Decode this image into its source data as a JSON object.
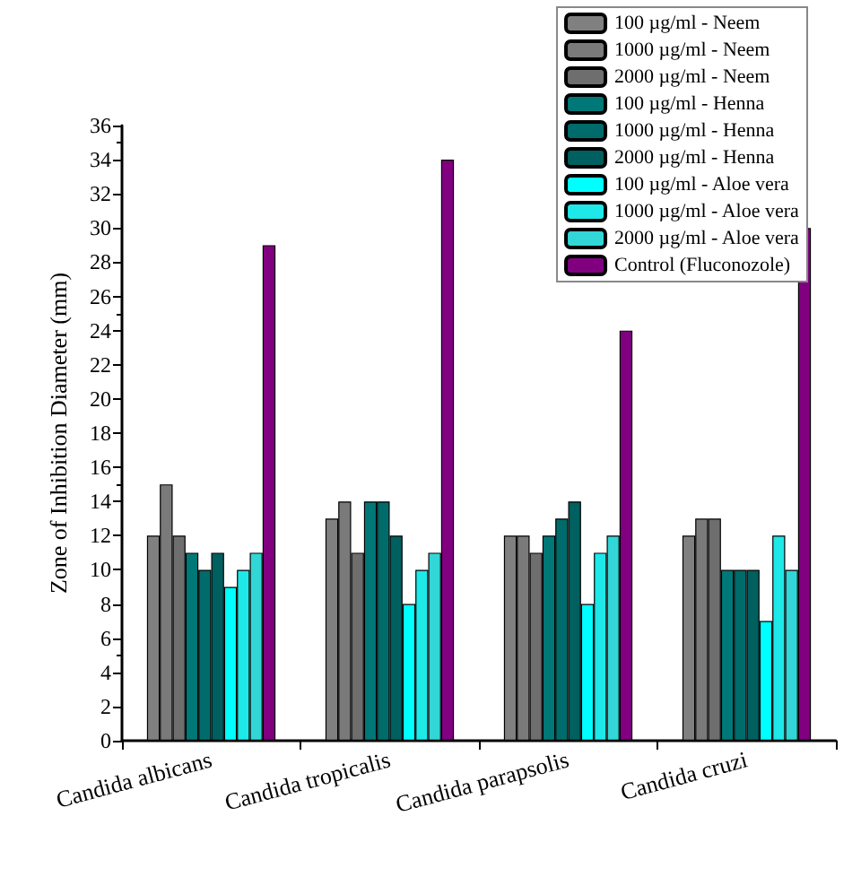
{
  "chart_data": {
    "type": "bar",
    "ylabel": "Zone of Inhibition Diameter (mm)",
    "categories": [
      "Candida albicans",
      "Candida tropicalis",
      "Candida parapsolis",
      "Candida cruzi"
    ],
    "series": [
      {
        "name": "100 µg/ml - Neem",
        "color": "#808080",
        "values": [
          12,
          13,
          12,
          12
        ]
      },
      {
        "name": "1000 µg/ml - Neem",
        "color": "#7a7a7a",
        "values": [
          15,
          14,
          12,
          13
        ]
      },
      {
        "name": "2000 µg/ml - Neem",
        "color": "#6e6e6e",
        "values": [
          12,
          11,
          11,
          13
        ]
      },
      {
        "name": "100 µg/ml - Henna",
        "color": "#007878",
        "values": [
          11,
          14,
          12,
          10
        ]
      },
      {
        "name": "1000 µg/ml - Henna",
        "color": "#006b6b",
        "values": [
          10,
          14,
          13,
          10
        ]
      },
      {
        "name": "2000 µg/ml - Henna",
        "color": "#005f5f",
        "values": [
          11,
          12,
          14,
          10
        ]
      },
      {
        "name": "100 µg/ml - Aloe vera",
        "color": "#00ffff",
        "values": [
          9,
          8,
          8,
          7
        ]
      },
      {
        "name": "1000 µg/ml - Aloe vera",
        "color": "#1ee8e8",
        "values": [
          10,
          10,
          11,
          12
        ]
      },
      {
        "name": "2000 µg/ml - Aloe vera",
        "color": "#33d6d6",
        "values": [
          11,
          11,
          12,
          10
        ]
      },
      {
        "name": "Control (Fluconozole)",
        "color": "#800080",
        "values": [
          29,
          34,
          24,
          30
        ]
      }
    ],
    "ylim": [
      0,
      36
    ],
    "yticks": [
      0,
      2,
      4,
      6,
      8,
      10,
      12,
      14,
      16,
      18,
      20,
      22,
      24,
      26,
      28,
      30,
      32,
      34,
      36
    ],
    "grid": false,
    "legend": "top right"
  }
}
